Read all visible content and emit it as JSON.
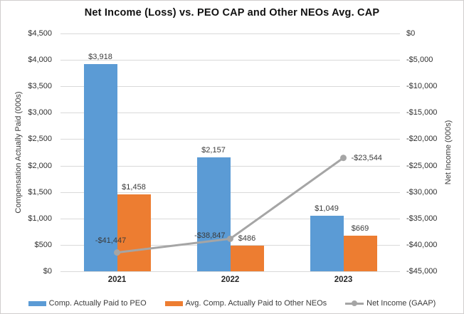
{
  "title": "Net Income (Loss) vs. PEO CAP and Other NEOs Avg. CAP",
  "chart_data": {
    "type": "bar+line combo",
    "categories": [
      "2021",
      "2022",
      "2023"
    ],
    "series": [
      {
        "name": "Comp. Actually Paid to PEO",
        "type": "bar",
        "axis": "left",
        "color": "#5B9BD5",
        "values": [
          3918,
          2157,
          1049
        ],
        "labels": [
          "$3,918",
          "$2,157",
          "$1,049"
        ]
      },
      {
        "name": "Avg. Comp. Actually Paid to Other NEOs",
        "type": "bar",
        "axis": "left",
        "color": "#ED7D31",
        "values": [
          1458,
          486,
          669
        ],
        "labels": [
          "$1,458",
          "$486",
          "$669"
        ]
      },
      {
        "name": "Net Income (GAAP)",
        "type": "line",
        "axis": "right",
        "color": "#A5A5A5",
        "values": [
          -41447,
          -38847,
          -23544
        ],
        "labels": [
          "-$41,447",
          "-$38,847",
          "-$23,544"
        ],
        "label_sides": [
          "above",
          "left",
          "right"
        ]
      }
    ],
    "left_axis": {
      "title": "Compensation Actually Paid (000s)",
      "min": 0,
      "max": 4500,
      "step": 500,
      "tick_labels": [
        "$4,500",
        "$4,000",
        "$3,500",
        "$3,000",
        "$2,500",
        "$2,000",
        "$1,500",
        "$1,000",
        "$500",
        "$0"
      ]
    },
    "right_axis": {
      "title": "Net Income (000s)",
      "min": -45000,
      "max": 0,
      "step": 5000,
      "tick_labels": [
        "$0",
        "-$5,000",
        "-$10,000",
        "-$15,000",
        "-$20,000",
        "-$25,000",
        "-$30,000",
        "-$35,000",
        "-$40,000",
        "-$45,000"
      ]
    },
    "grid": true,
    "legend_position": "bottom"
  },
  "colors": {
    "peo_bar": "#5B9BD5",
    "neo_bar": "#ED7D31",
    "net_income_line": "#A5A5A5",
    "gridline": "#D9D9D9"
  }
}
